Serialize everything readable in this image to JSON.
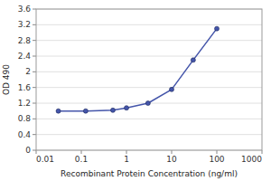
{
  "chart_data": {
    "type": "line",
    "x": [
      0.031,
      0.125,
      0.5,
      1.0,
      3.0,
      10.0,
      30.0,
      100.0
    ],
    "values": [
      1.0,
      1.0,
      1.02,
      1.08,
      1.2,
      1.55,
      2.3,
      3.1
    ],
    "color": "#4455aa",
    "marker": "circle",
    "xlabel": "Recombinant Protein Concentration (ng/ml)",
    "ylabel": "OD 490",
    "log": "x",
    "xlim": [
      0.01,
      1000
    ],
    "ylim": [
      0,
      3.6
    ],
    "xticks": [
      0.01,
      0.1,
      1,
      10,
      100,
      1000
    ],
    "yticks": [
      0,
      0.4,
      0.8,
      1.2,
      1.6,
      2,
      2.4,
      2.8,
      3.2,
      3.6
    ],
    "grid": "y"
  }
}
